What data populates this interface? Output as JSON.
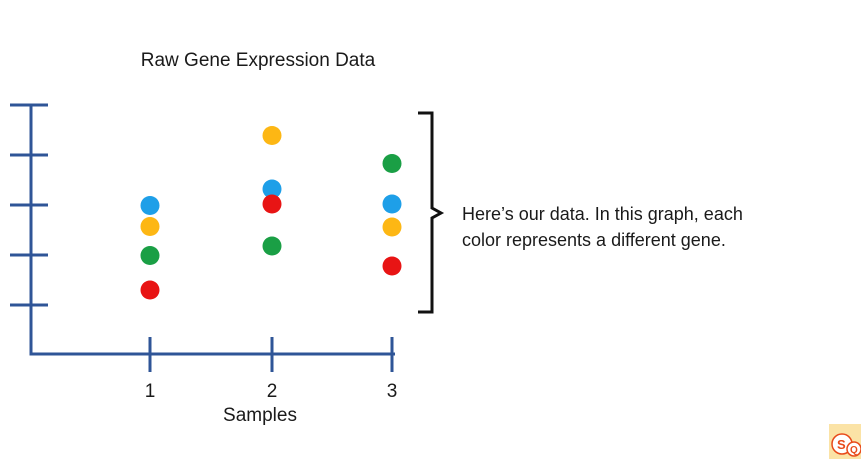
{
  "chart_data": {
    "type": "scatter",
    "title": "Raw Gene Expression Data",
    "xlabel": "Samples",
    "ylabel": "",
    "categories": [
      "1",
      "2",
      "3"
    ],
    "ylim": [
      0,
      5
    ],
    "y_ticks": 5,
    "y_tick_labels": [],
    "series": [
      {
        "color": "#1e9fe8",
        "values": [
          2.99,
          3.32,
          3.02
        ]
      },
      {
        "color": "#fdb714",
        "values": [
          2.57,
          4.39,
          2.56
        ]
      },
      {
        "color": "#1a9f45",
        "values": [
          1.99,
          2.18,
          3.83
        ]
      },
      {
        "color": "#e81414",
        "values": [
          1.3,
          3.02,
          1.78
        ]
      }
    ]
  },
  "annotation": {
    "text": "Here’s our data. In this graph, each color represents a different gene."
  },
  "logo": {
    "icon": "statquest-logo-icon",
    "text": "SQ"
  },
  "colors": {
    "axis": "#2f5597"
  }
}
